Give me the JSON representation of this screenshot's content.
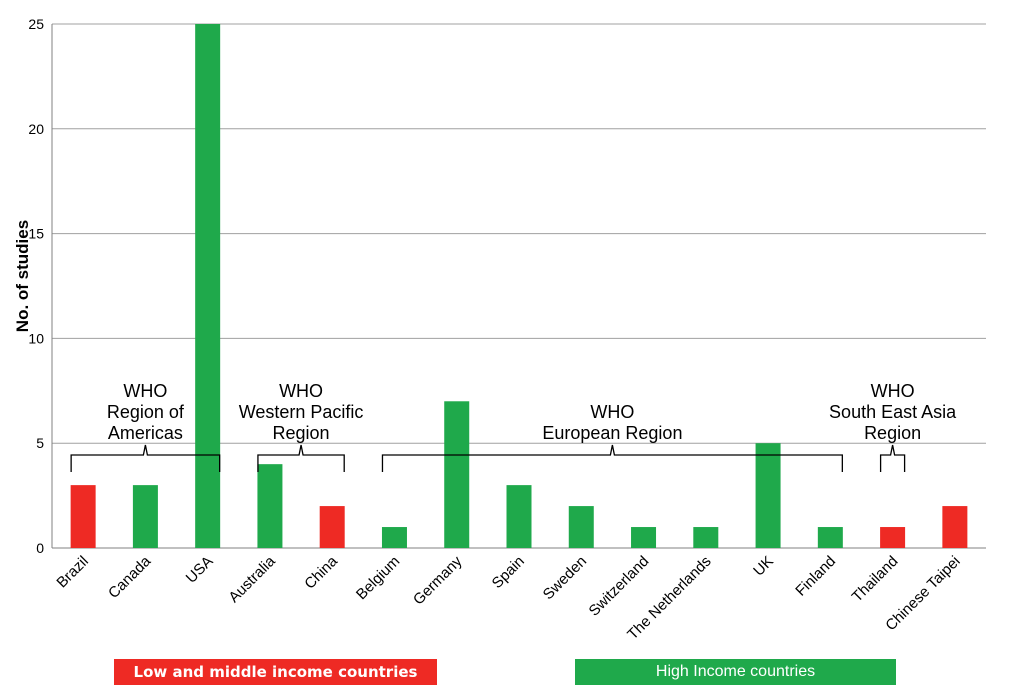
{
  "chart_data": {
    "type": "bar",
    "ylabel": "No. of studies",
    "ylim": [
      0,
      25
    ],
    "yticks": [
      0,
      5,
      10,
      15,
      20,
      25
    ],
    "grid": true,
    "categories": [
      "Brazil",
      "Canada",
      "USA",
      "Australia",
      "China",
      "Belgium",
      "Germany",
      "Spain",
      "Sweden",
      "Switzerland",
      "The Netherlands",
      "UK",
      "Finland",
      "Thailand",
      "Chinese Taipei"
    ],
    "values": [
      3,
      3,
      25,
      4,
      2,
      1,
      7,
      3,
      2,
      1,
      1,
      5,
      1,
      1,
      2
    ],
    "income_group": [
      "low_middle",
      "high",
      "high",
      "high",
      "low_middle",
      "high",
      "high",
      "high",
      "high",
      "high",
      "high",
      "high",
      "high",
      "low_middle",
      "low_middle"
    ],
    "colors": {
      "low_middle": "#ee2a24",
      "high": "#1fa94b",
      "grid": "#a0a0a0",
      "axis": "#808080"
    },
    "regions": [
      {
        "lines": [
          "WHO",
          "Region of",
          "Americas"
        ],
        "from": 0,
        "to": 2
      },
      {
        "lines": [
          "WHO",
          "Western Pacific",
          "Region"
        ],
        "from": 3,
        "to": 4
      },
      {
        "lines": [
          "WHO",
          "European Region"
        ],
        "from": 5,
        "to": 12
      },
      {
        "lines": [
          "WHO",
          "South East Asia",
          "Region"
        ],
        "from": 13,
        "to": 13
      }
    ],
    "legend": {
      "low_middle": "Low and middle income countries",
      "high": "High Income countries"
    }
  }
}
